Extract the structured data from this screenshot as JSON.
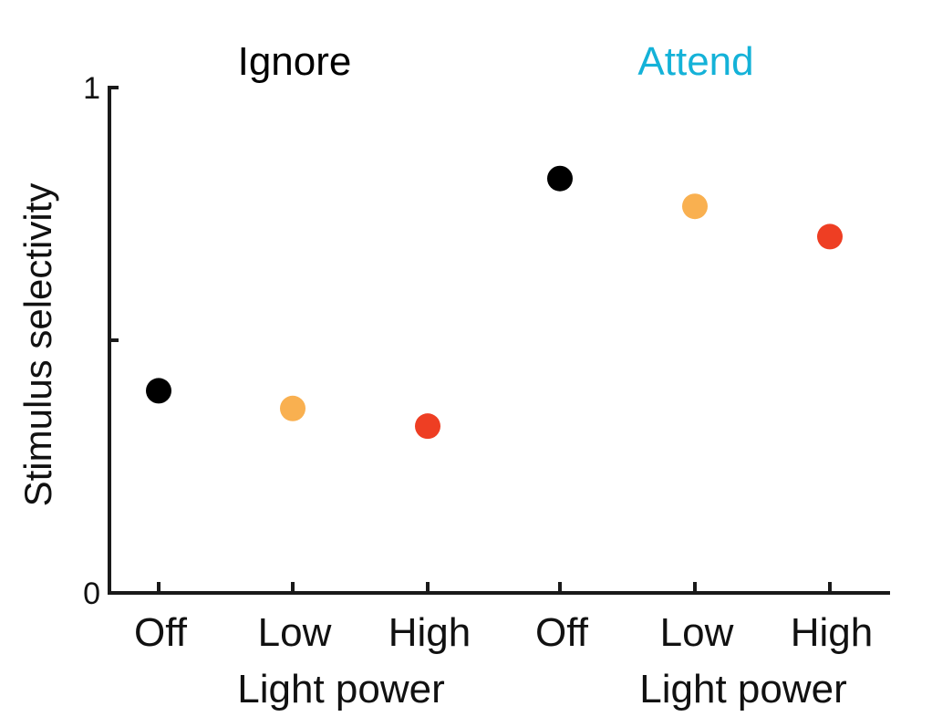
{
  "chart_data": {
    "type": "scatter",
    "ylabel": "Stimulus selectivity",
    "ylim": [
      0,
      1
    ],
    "y_ticks": [
      0,
      0.5,
      1
    ],
    "y_tick_labels": [
      "0",
      "",
      "1"
    ],
    "grid": false,
    "groups": [
      {
        "title": "Ignore",
        "title_color": "#000000",
        "xlabel": "Light power",
        "categories": [
          "Off",
          "Low",
          "High"
        ],
        "values": [
          0.4,
          0.365,
          0.33
        ],
        "colors": [
          "#000000",
          "#f9b050",
          "#ee3e23"
        ]
      },
      {
        "title": "Attend",
        "title_color": "#14b2d8",
        "xlabel": "Light power",
        "categories": [
          "Off",
          "Low",
          "High"
        ],
        "values": [
          0.82,
          0.765,
          0.705
        ],
        "colors": [
          "#000000",
          "#f9b050",
          "#ee3e23"
        ]
      }
    ]
  }
}
